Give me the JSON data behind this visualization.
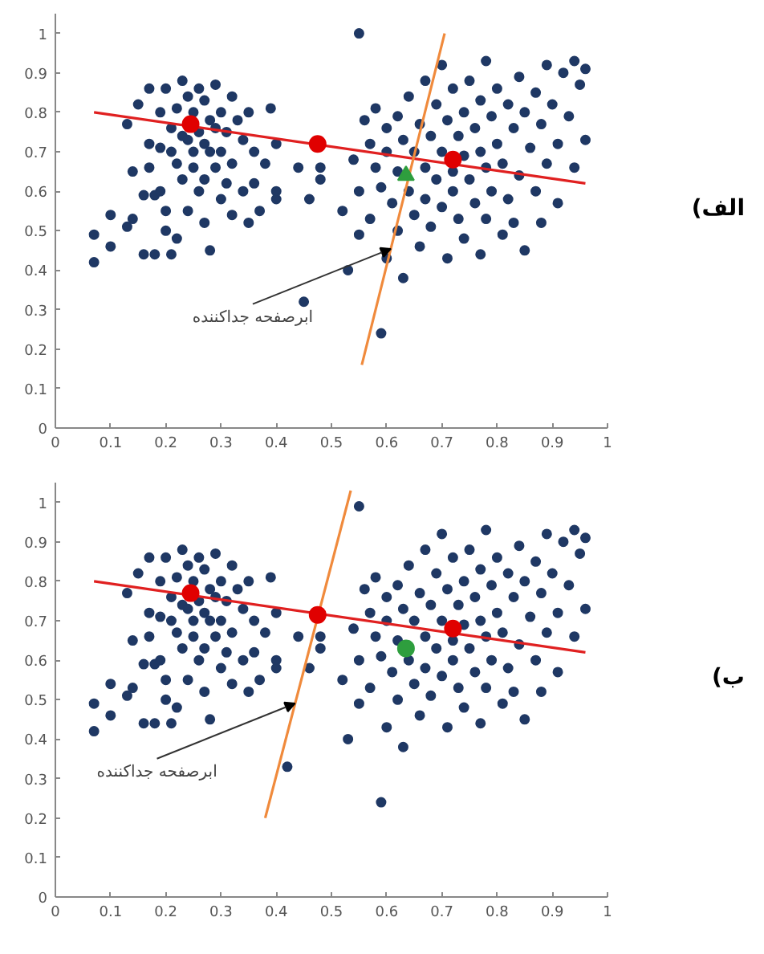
{
  "chart_data": [
    {
      "type": "scatter",
      "xlim": [
        0,
        1
      ],
      "ylim": [
        0,
        1.05
      ],
      "xticks": [
        0,
        0.1,
        0.2,
        0.3,
        0.4,
        0.5,
        0.6,
        0.7,
        0.8,
        0.9,
        1
      ],
      "yticks": [
        0,
        0.1,
        0.2,
        0.3,
        0.4,
        0.5,
        0.6,
        0.7,
        0.8,
        0.9,
        1
      ],
      "grid": false,
      "annotations": [
        {
          "text": "ابرصفحه جداکننده",
          "x": 0.6075,
          "y": 0.454
        },
        "الف)"
      ],
      "series": [
        {
          "marker": "circle",
          "color": "#1f3864",
          "x": [
            0.07,
            0.07,
            0.1,
            0.1,
            0.13,
            0.13,
            0.14,
            0.14,
            0.15,
            0.16,
            0.16,
            0.17,
            0.17,
            0.17,
            0.18,
            0.18,
            0.19,
            0.19,
            0.19,
            0.2,
            0.2,
            0.2,
            0.21,
            0.21,
            0.21,
            0.22,
            0.22,
            0.22,
            0.23,
            0.23,
            0.23,
            0.24,
            0.24,
            0.24,
            0.25,
            0.25,
            0.25,
            0.26,
            0.26,
            0.26,
            0.27,
            0.27,
            0.27,
            0.27,
            0.28,
            0.28,
            0.28,
            0.29,
            0.29,
            0.29,
            0.3,
            0.3,
            0.3,
            0.31,
            0.31,
            0.32,
            0.32,
            0.32,
            0.33,
            0.34,
            0.34,
            0.35,
            0.35,
            0.36,
            0.36,
            0.37,
            0.38,
            0.39,
            0.4,
            0.4,
            0.4,
            0.44,
            0.45,
            0.46,
            0.48,
            0.48,
            0.52,
            0.53,
            0.54,
            0.55,
            0.55,
            0.55,
            0.56,
            0.57,
            0.57,
            0.58,
            0.58,
            0.59,
            0.59,
            0.6,
            0.6,
            0.6,
            0.61,
            0.62,
            0.62,
            0.62,
            0.63,
            0.63,
            0.64,
            0.64,
            0.65,
            0.65,
            0.66,
            0.66,
            0.67,
            0.67,
            0.67,
            0.68,
            0.68,
            0.69,
            0.69,
            0.7,
            0.7,
            0.7,
            0.71,
            0.71,
            0.72,
            0.72,
            0.72,
            0.73,
            0.73,
            0.74,
            0.74,
            0.74,
            0.75,
            0.75,
            0.76,
            0.76,
            0.77,
            0.77,
            0.77,
            0.78,
            0.78,
            0.78,
            0.79,
            0.79,
            0.8,
            0.8,
            0.81,
            0.81,
            0.82,
            0.82,
            0.83,
            0.83,
            0.84,
            0.84,
            0.85,
            0.85,
            0.86,
            0.87,
            0.87,
            0.88,
            0.88,
            0.89,
            0.89,
            0.9,
            0.91,
            0.91,
            0.92,
            0.93,
            0.94,
            0.94,
            0.95,
            0.96,
            0.96
          ],
          "values": [
            0.49,
            0.42,
            0.54,
            0.46,
            0.51,
            0.77,
            0.53,
            0.65,
            0.82,
            0.59,
            0.44,
            0.86,
            0.72,
            0.66,
            0.59,
            0.44,
            0.8,
            0.71,
            0.6,
            0.86,
            0.55,
            0.5,
            0.76,
            0.7,
            0.44,
            0.81,
            0.67,
            0.48,
            0.88,
            0.74,
            0.63,
            0.84,
            0.73,
            0.55,
            0.8,
            0.7,
            0.66,
            0.86,
            0.75,
            0.6,
            0.83,
            0.72,
            0.63,
            0.52,
            0.78,
            0.7,
            0.45,
            0.87,
            0.76,
            0.66,
            0.8,
            0.7,
            0.58,
            0.75,
            0.62,
            0.84,
            0.67,
            0.54,
            0.78,
            0.73,
            0.6,
            0.8,
            0.52,
            0.7,
            0.62,
            0.55,
            0.67,
            0.81,
            0.72,
            0.6,
            0.58,
            0.66,
            0.32,
            0.58,
            0.66,
            0.63,
            0.55,
            0.4,
            0.68,
            1.0,
            0.6,
            0.49,
            0.78,
            0.72,
            0.53,
            0.81,
            0.66,
            0.24,
            0.61,
            0.76,
            0.7,
            0.43,
            0.57,
            0.79,
            0.65,
            0.5,
            0.73,
            0.38,
            0.84,
            0.6,
            0.7,
            0.54,
            0.77,
            0.46,
            0.88,
            0.66,
            0.58,
            0.74,
            0.51,
            0.82,
            0.63,
            0.92,
            0.7,
            0.56,
            0.78,
            0.43,
            0.86,
            0.65,
            0.6,
            0.74,
            0.53,
            0.8,
            0.69,
            0.48,
            0.88,
            0.63,
            0.76,
            0.57,
            0.83,
            0.7,
            0.44,
            0.93,
            0.66,
            0.53,
            0.79,
            0.6,
            0.86,
            0.72,
            0.67,
            0.49,
            0.82,
            0.58,
            0.76,
            0.52,
            0.89,
            0.64,
            0.8,
            0.45,
            0.71,
            0.85,
            0.6,
            0.77,
            0.52,
            0.92,
            0.67,
            0.82,
            0.72,
            0.57,
            0.9,
            0.79,
            0.93,
            0.66,
            0.87,
            0.91,
            0.73
          ]
        },
        {
          "type": "line",
          "line_style": "solid",
          "color": "#e02020",
          "x": [
            0.07,
            0.96
          ],
          "values": [
            0.8,
            0.62
          ]
        },
        {
          "type": "line",
          "line_style": "solid",
          "color": "#f08a3c",
          "x": [
            0.555,
            0.705
          ],
          "values": [
            0.16,
            1.0
          ]
        },
        {
          "marker": "circle",
          "color": "#e00000",
          "x": [
            0.245,
            0.475,
            0.72
          ],
          "values": [
            0.77,
            0.72,
            0.68
          ]
        },
        {
          "marker": "triangle",
          "color": "#2e9e3e",
          "x": [
            0.635
          ],
          "values": [
            0.64
          ]
        }
      ]
    },
    {
      "type": "scatter",
      "xlim": [
        0,
        1
      ],
      "ylim": [
        0,
        1.05
      ],
      "xticks": [
        0,
        0.1,
        0.2,
        0.3,
        0.4,
        0.5,
        0.6,
        0.7,
        0.8,
        0.9,
        1
      ],
      "yticks": [
        0,
        0.1,
        0.2,
        0.3,
        0.4,
        0.5,
        0.6,
        0.7,
        0.8,
        0.9,
        1
      ],
      "grid": false,
      "annotations": [
        {
          "text": "ابرصفحه جداکننده",
          "x": 0.434,
          "y": 0.4905
        },
        "ب)"
      ],
      "series": [
        {
          "marker": "circle",
          "color": "#1f3864",
          "x": [
            0.07,
            0.07,
            0.1,
            0.1,
            0.13,
            0.13,
            0.14,
            0.14,
            0.15,
            0.16,
            0.16,
            0.17,
            0.17,
            0.17,
            0.18,
            0.18,
            0.19,
            0.19,
            0.19,
            0.2,
            0.2,
            0.2,
            0.21,
            0.21,
            0.21,
            0.22,
            0.22,
            0.22,
            0.23,
            0.23,
            0.23,
            0.24,
            0.24,
            0.24,
            0.25,
            0.25,
            0.25,
            0.26,
            0.26,
            0.26,
            0.27,
            0.27,
            0.27,
            0.27,
            0.28,
            0.28,
            0.28,
            0.29,
            0.29,
            0.29,
            0.3,
            0.3,
            0.3,
            0.31,
            0.31,
            0.32,
            0.32,
            0.32,
            0.33,
            0.34,
            0.34,
            0.35,
            0.35,
            0.36,
            0.36,
            0.37,
            0.38,
            0.39,
            0.4,
            0.4,
            0.4,
            0.44,
            0.42,
            0.46,
            0.48,
            0.48,
            0.52,
            0.53,
            0.54,
            0.55,
            0.55,
            0.55,
            0.56,
            0.57,
            0.57,
            0.58,
            0.58,
            0.59,
            0.59,
            0.6,
            0.6,
            0.6,
            0.61,
            0.62,
            0.62,
            0.62,
            0.63,
            0.63,
            0.64,
            0.64,
            0.65,
            0.65,
            0.66,
            0.66,
            0.67,
            0.67,
            0.67,
            0.68,
            0.68,
            0.69,
            0.69,
            0.7,
            0.7,
            0.7,
            0.71,
            0.71,
            0.72,
            0.72,
            0.72,
            0.73,
            0.73,
            0.74,
            0.74,
            0.74,
            0.75,
            0.75,
            0.76,
            0.76,
            0.77,
            0.77,
            0.77,
            0.78,
            0.78,
            0.78,
            0.79,
            0.79,
            0.8,
            0.8,
            0.81,
            0.81,
            0.82,
            0.82,
            0.83,
            0.83,
            0.84,
            0.84,
            0.85,
            0.85,
            0.86,
            0.87,
            0.87,
            0.88,
            0.88,
            0.89,
            0.89,
            0.9,
            0.91,
            0.91,
            0.92,
            0.93,
            0.94,
            0.94,
            0.95,
            0.96,
            0.96
          ],
          "values": [
            0.49,
            0.42,
            0.54,
            0.46,
            0.51,
            0.77,
            0.53,
            0.65,
            0.82,
            0.59,
            0.44,
            0.86,
            0.72,
            0.66,
            0.59,
            0.44,
            0.8,
            0.71,
            0.6,
            0.86,
            0.55,
            0.5,
            0.76,
            0.7,
            0.44,
            0.81,
            0.67,
            0.48,
            0.88,
            0.74,
            0.63,
            0.84,
            0.73,
            0.55,
            0.8,
            0.7,
            0.66,
            0.86,
            0.75,
            0.6,
            0.83,
            0.72,
            0.63,
            0.52,
            0.78,
            0.7,
            0.45,
            0.87,
            0.76,
            0.66,
            0.8,
            0.7,
            0.58,
            0.75,
            0.62,
            0.84,
            0.67,
            0.54,
            0.78,
            0.73,
            0.6,
            0.8,
            0.52,
            0.7,
            0.62,
            0.55,
            0.67,
            0.81,
            0.72,
            0.6,
            0.58,
            0.66,
            0.33,
            0.58,
            0.66,
            0.63,
            0.55,
            0.4,
            0.68,
            0.99,
            0.6,
            0.49,
            0.78,
            0.72,
            0.53,
            0.81,
            0.66,
            0.24,
            0.61,
            0.76,
            0.7,
            0.43,
            0.57,
            0.79,
            0.65,
            0.5,
            0.73,
            0.38,
            0.84,
            0.6,
            0.7,
            0.54,
            0.77,
            0.46,
            0.88,
            0.66,
            0.58,
            0.74,
            0.51,
            0.82,
            0.63,
            0.92,
            0.7,
            0.56,
            0.78,
            0.43,
            0.86,
            0.65,
            0.6,
            0.74,
            0.53,
            0.8,
            0.69,
            0.48,
            0.88,
            0.63,
            0.76,
            0.57,
            0.83,
            0.7,
            0.44,
            0.93,
            0.66,
            0.53,
            0.79,
            0.6,
            0.86,
            0.72,
            0.67,
            0.49,
            0.82,
            0.58,
            0.76,
            0.52,
            0.89,
            0.64,
            0.8,
            0.45,
            0.71,
            0.85,
            0.6,
            0.77,
            0.52,
            0.92,
            0.67,
            0.82,
            0.72,
            0.57,
            0.9,
            0.79,
            0.93,
            0.66,
            0.87,
            0.91,
            0.73
          ]
        },
        {
          "type": "line",
          "line_style": "solid",
          "color": "#e02020",
          "x": [
            0.07,
            0.96
          ],
          "values": [
            0.8,
            0.62
          ]
        },
        {
          "type": "line",
          "line_style": "solid",
          "color": "#f08a3c",
          "x": [
            0.38,
            0.535
          ],
          "values": [
            0.2,
            1.03
          ]
        },
        {
          "marker": "circle",
          "color": "#e00000",
          "x": [
            0.245,
            0.475,
            0.72
          ],
          "values": [
            0.77,
            0.715,
            0.68
          ]
        },
        {
          "marker": "circle",
          "color": "#2e9e3e",
          "x": [
            0.635
          ],
          "values": [
            0.63
          ]
        }
      ]
    }
  ]
}
